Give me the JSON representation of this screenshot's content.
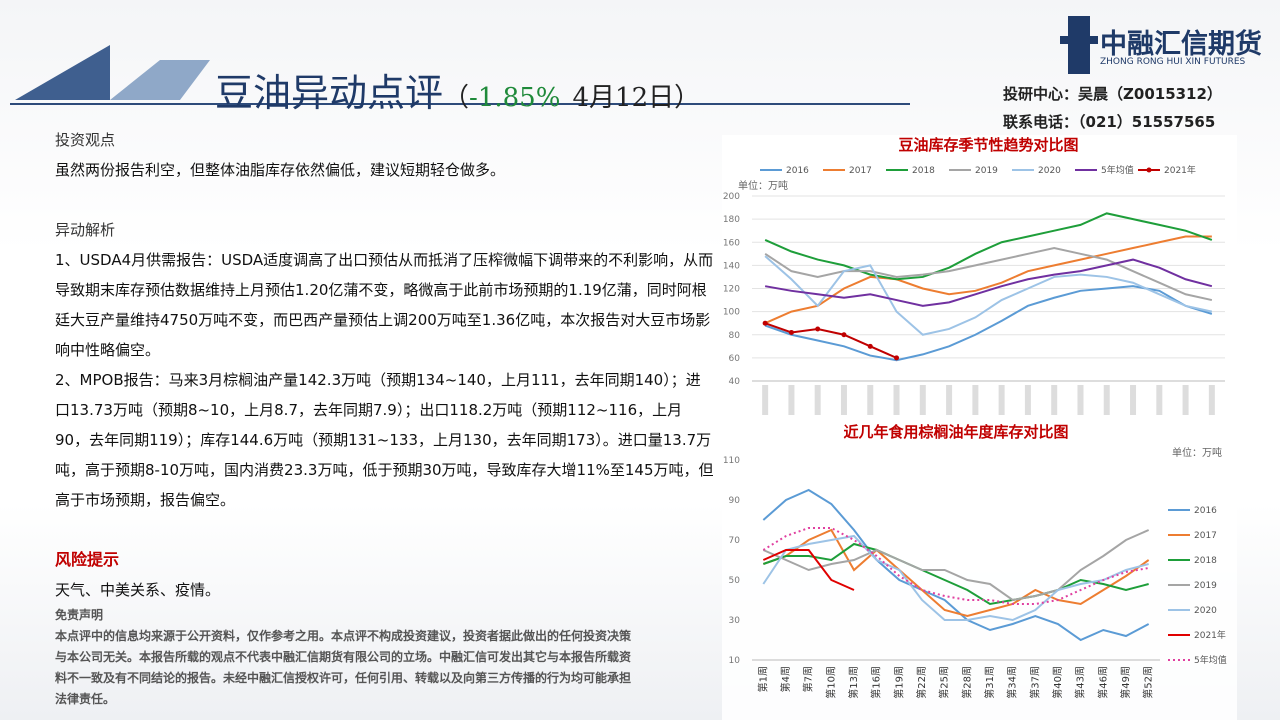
{
  "header": {
    "title": "豆油异动点评",
    "subtitle_open": "（",
    "change": "-1.85%",
    "date": "4月12日）",
    "logo_name": "中融汇信期货",
    "logo_en": "ZHONG RONG HUI XIN FUTURES",
    "contact": [
      "投研中心：吴晨（Z0015312）",
      "联系电话：（021）51557565"
    ]
  },
  "body": {
    "view_heading": "投资观点",
    "view_text": "虽然两份报告利空，但整体油脂库存依然偏低，建议短期轻仓做多。",
    "analysis_heading": "异动解析",
    "analysis": [
      "1、USDA4月供需报告：USDA适度调高了出口预估从而抵消了压榨微幅下调带来的不利影响，从而导致期末库存预估数据维持上月预估1.20亿蒲不变，略微高于此前市场预期的1.19亿蒲，同时阿根廷大豆产量维持4750万吨不变，而巴西产量预估上调200万吨至1.36亿吨，本次报告对大豆市场影响中性略偏空。",
      "2、MPOB报告：马来3月棕榈油产量142.3万吨（预期134~140，上月111，去年同期140）；进口13.73万吨（预期8~10，上月8.7，去年同期7.9）；出口118.2万吨（预期112~116，上月90，去年同期119）；库存144.6万吨（预期131~133，上月130，去年同期173）。进口量13.7万吨，高于预期8-10万吨，国内消费23.3万吨，低于预期30万吨，导致库存大增11%至145万吨，但高于市场预期，报告偏空。"
    ],
    "risk_heading": "风险提示",
    "risk_text": "天气、中美关系、疫情。",
    "disclaimer_heading": "免责声明",
    "disclaimer": "本点评中的信息均来源于公开资料，仅作参考之用。本点评不构成投资建议，投资者据此做出的任何投资决策与本公司无关。本报告所载的观点不代表中融汇信期货有限公司的立场。中融汇信可发出其它与本报告所载资料不一致及有不同结论的报告。未经中融汇信授权许可，任何引用、转载以及向第三方传播的行为均可能承担法律责任。"
  },
  "chart_data": [
    {
      "type": "line",
      "title": "豆油库存季节性趋势对比图",
      "unit": "单位：万吨",
      "grid": true,
      "legend": "top",
      "categories": [
        null,
        null,
        null,
        null,
        null,
        null,
        null,
        null,
        null,
        null,
        null,
        null,
        null,
        null,
        null,
        null,
        null,
        null
      ],
      "ylim": [
        40,
        200
      ],
      "yticks": [
        40,
        60,
        80,
        100,
        120,
        140,
        160,
        180,
        200
      ],
      "series": [
        {
          "name": "2016",
          "color": "#5b9bd5",
          "values": [
            88,
            80,
            75,
            70,
            62,
            58,
            63,
            70,
            80,
            92,
            105,
            112,
            118,
            120,
            122,
            118,
            105,
            98
          ]
        },
        {
          "name": "2017",
          "color": "#ed7d31",
          "values": [
            90,
            100,
            105,
            120,
            130,
            128,
            120,
            115,
            118,
            125,
            135,
            140,
            145,
            150,
            155,
            160,
            165,
            165
          ]
        },
        {
          "name": "2018",
          "color": "#1e9e3a",
          "values": [
            162,
            152,
            145,
            140,
            132,
            128,
            130,
            138,
            150,
            160,
            165,
            170,
            175,
            185,
            180,
            175,
            170,
            162
          ]
        },
        {
          "name": "2019",
          "color": "#a5a5a5",
          "values": [
            150,
            135,
            130,
            135,
            135,
            130,
            132,
            135,
            140,
            145,
            150,
            155,
            150,
            145,
            135,
            125,
            115,
            110
          ]
        },
        {
          "name": "2020",
          "color": "#9dc3e6",
          "values": [
            148,
            128,
            105,
            135,
            140,
            100,
            80,
            85,
            95,
            110,
            120,
            130,
            132,
            130,
            125,
            115,
            105,
            100
          ]
        },
        {
          "name": "5年均值",
          "color": "#7030a0",
          "values": [
            122,
            118,
            115,
            112,
            115,
            110,
            105,
            108,
            115,
            122,
            128,
            132,
            135,
            140,
            145,
            138,
            128,
            122
          ]
        },
        {
          "name": "2021年",
          "color": "#c00000",
          "marker": "circle",
          "values": [
            90,
            82,
            85,
            80,
            70,
            60,
            null,
            null,
            null,
            null,
            null,
            null,
            null,
            null,
            null,
            null,
            null,
            null
          ]
        }
      ]
    },
    {
      "type": "line",
      "title": "近几年食用棕榈油年度库存对比图",
      "unit": "单位：万吨",
      "grid": false,
      "legend": "right",
      "categories": [
        "第1周",
        "第4周",
        "第7周",
        "第10周",
        "第13周",
        "第16周",
        "第19周",
        "第22周",
        "第25周",
        "第28周",
        "第31周",
        "第34周",
        "第37周",
        "第40周",
        "第43周",
        "第46周",
        "第49周",
        "第52周"
      ],
      "ylim": [
        10,
        110
      ],
      "yticks": [
        10,
        30,
        50,
        70,
        90,
        110
      ],
      "series": [
        {
          "name": "2016",
          "color": "#5b9bd5",
          "values": [
            80,
            90,
            95,
            88,
            75,
            60,
            50,
            45,
            40,
            30,
            25,
            28,
            32,
            28,
            20,
            25,
            22,
            28
          ]
        },
        {
          "name": "2017",
          "color": "#ed7d31",
          "values": [
            58,
            62,
            70,
            75,
            55,
            65,
            55,
            45,
            35,
            32,
            35,
            38,
            45,
            40,
            38,
            45,
            52,
            60
          ]
        },
        {
          "name": "2018",
          "color": "#1e9e3a",
          "values": [
            58,
            62,
            62,
            60,
            68,
            65,
            60,
            55,
            50,
            45,
            38,
            40,
            42,
            45,
            50,
            48,
            45,
            48
          ]
        },
        {
          "name": "2019",
          "color": "#a5a5a5",
          "values": [
            65,
            60,
            55,
            58,
            60,
            65,
            60,
            55,
            55,
            50,
            48,
            40,
            42,
            45,
            55,
            62,
            70,
            75
          ]
        },
        {
          "name": "2020",
          "color": "#9dc3e6",
          "values": [
            48,
            65,
            68,
            70,
            72,
            60,
            55,
            40,
            30,
            30,
            32,
            30,
            35,
            45,
            48,
            50,
            55,
            58
          ]
        },
        {
          "name": "2021年",
          "color": "#e00000",
          "values": [
            60,
            65,
            65,
            50,
            45,
            null,
            null,
            null,
            null,
            null,
            null,
            null,
            null,
            null,
            null,
            null,
            null,
            null
          ]
        },
        {
          "name": "5年均值",
          "color": "#e040a0",
          "dash": "dotted",
          "values": [
            65,
            72,
            76,
            76,
            70,
            62,
            52,
            45,
            42,
            40,
            40,
            38,
            38,
            40,
            45,
            50,
            54,
            56
          ]
        }
      ]
    }
  ]
}
